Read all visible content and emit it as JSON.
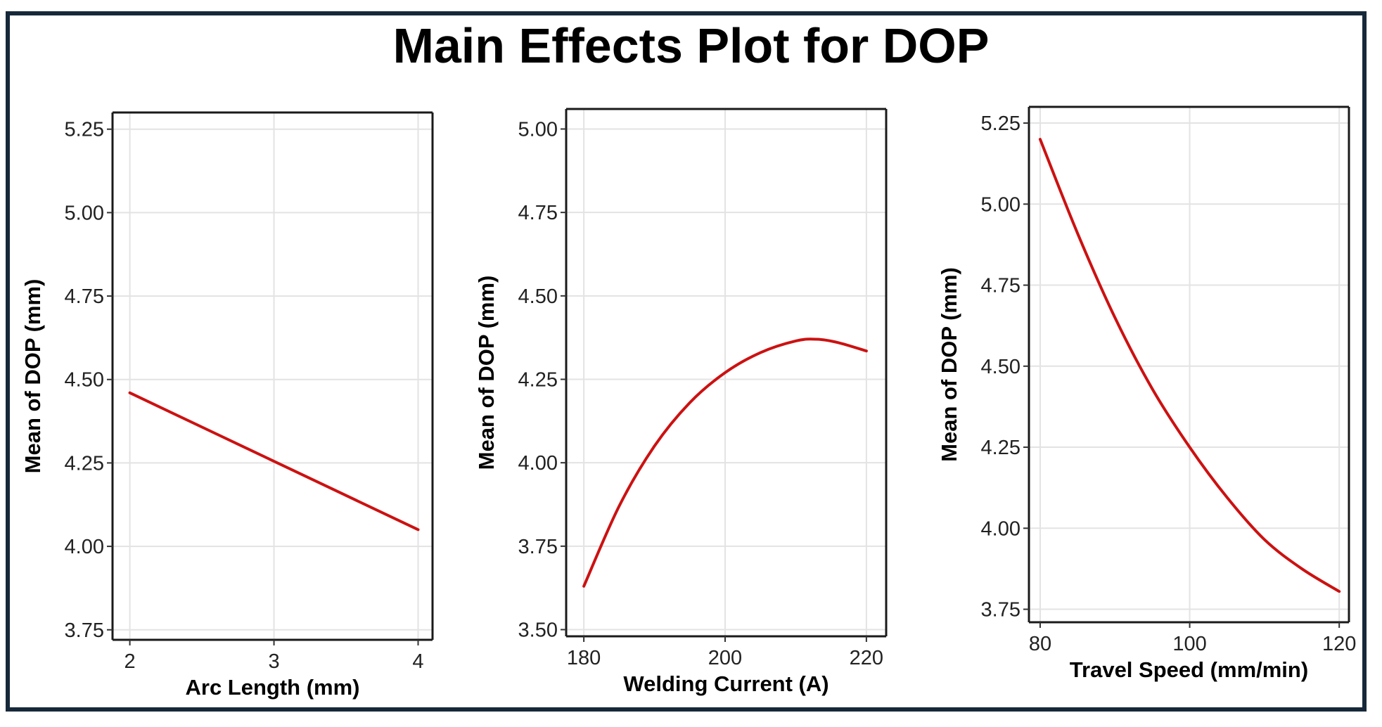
{
  "title": "Main Effects Plot for DOP",
  "chart_data": [
    {
      "type": "line",
      "title": "",
      "xlabel": "Arc Length (mm)",
      "ylabel": "Mean of DOP (mm)",
      "xlim": [
        1.88,
        4.1
      ],
      "ylim": [
        3.72,
        5.3
      ],
      "xticks": [
        2,
        3,
        4
      ],
      "yticks": [
        3.75,
        4.0,
        4.25,
        4.5,
        4.75,
        5.0,
        5.25
      ],
      "ytick_labels": [
        "3.75",
        "4.00",
        "4.25",
        "4.50",
        "4.75",
        "5.00",
        "5.25"
      ],
      "series": [
        {
          "name": "DOP",
          "color": "#cc1111",
          "x": [
            2,
            3,
            4
          ],
          "y": [
            4.46,
            4.255,
            4.05
          ]
        }
      ]
    },
    {
      "type": "line",
      "title": "",
      "xlabel": "Welding Current (A)",
      "ylabel": "Mean of DOP (mm)",
      "xlim": [
        177.5,
        222.8
      ],
      "ylim": [
        3.48,
        5.06
      ],
      "xticks": [
        180,
        200,
        220
      ],
      "yticks": [
        3.5,
        3.75,
        4.0,
        4.25,
        4.5,
        4.75,
        5.0
      ],
      "ytick_labels": [
        "3.50",
        "3.75",
        "4.00",
        "4.25",
        "4.50",
        "4.75",
        "5.00"
      ],
      "series": [
        {
          "name": "DOP",
          "color": "#cc1111",
          "x": [
            180,
            185,
            190,
            195,
            200,
            205,
            210,
            213,
            216,
            220
          ],
          "y": [
            3.63,
            3.87,
            4.05,
            4.18,
            4.27,
            4.33,
            4.365,
            4.37,
            4.36,
            4.335
          ]
        }
      ]
    },
    {
      "type": "line",
      "title": "",
      "xlabel": "Travel Speed (mm/min)",
      "ylabel": "Mean of DOP (mm)",
      "xlim": [
        78.5,
        121.3
      ],
      "ylim": [
        3.71,
        5.3
      ],
      "xticks": [
        80,
        100,
        120
      ],
      "yticks": [
        3.75,
        4.0,
        4.25,
        4.5,
        4.75,
        5.0,
        5.25
      ],
      "ytick_labels": [
        "3.75",
        "4.00",
        "4.25",
        "4.50",
        "4.75",
        "5.00",
        "5.25"
      ],
      "series": [
        {
          "name": "DOP",
          "color": "#cc1111",
          "x": [
            80,
            85,
            90,
            95,
            100,
            105,
            110,
            115,
            120
          ],
          "y": [
            5.2,
            4.91,
            4.65,
            4.43,
            4.25,
            4.095,
            3.965,
            3.875,
            3.805
          ]
        }
      ]
    }
  ]
}
